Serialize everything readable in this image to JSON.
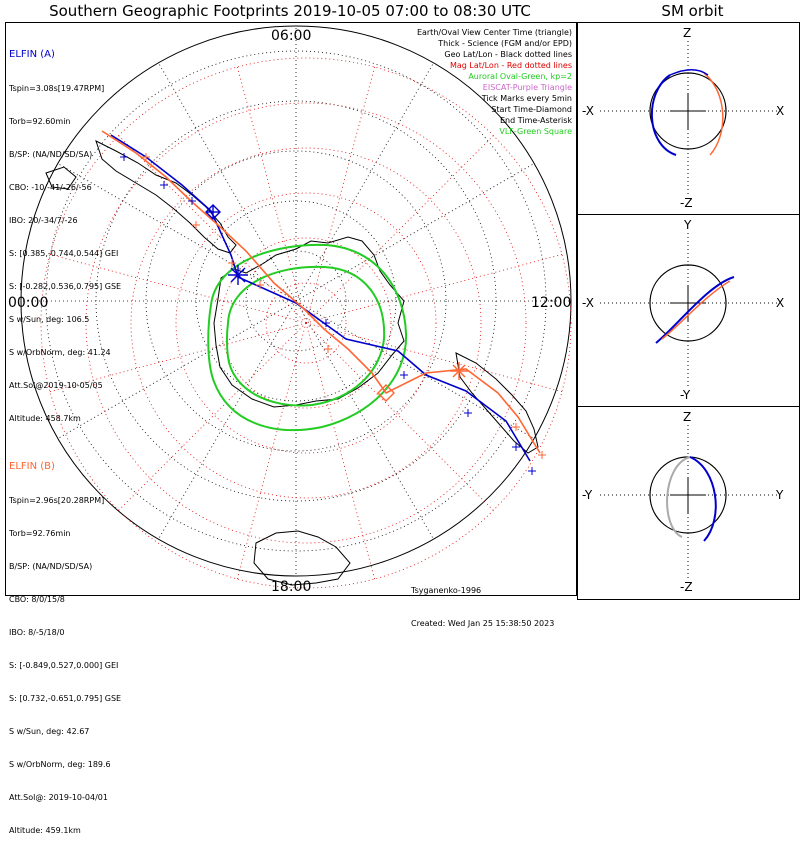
{
  "titles": {
    "main": "Southern Geographic Footprints 2019-10-05 07:00 to 08:30 UTC",
    "sm": "SM orbit"
  },
  "map": {
    "time_labels": {
      "top": "06:00",
      "left": "00:00",
      "right": "12:00",
      "bottom": "18:00"
    },
    "legend": [
      {
        "text": "Earth/Oval View Center Time (triangle)",
        "color": "#000000"
      },
      {
        "text": "Thick - Science (FGM and/or EPD)",
        "color": "#000000"
      },
      {
        "text": "Geo Lat/Lon - Black dotted lines",
        "color": "#000000"
      },
      {
        "text": "Mag Lat/Lon - Red dotted lines",
        "color": "#e00000"
      },
      {
        "text": "Auroral Oval-Green, kp=2",
        "color": "#22cc22"
      },
      {
        "text": "EISCAT-Purple Triangle",
        "color": "#cc66cc"
      },
      {
        "text": "Tick Marks every 5min",
        "color": "#000000"
      },
      {
        "text": "Start Time-Diamond",
        "color": "#000000"
      },
      {
        "text": "End Time-Asterisk",
        "color": "#000000"
      },
      {
        "text": "VLF-Green Square",
        "color": "#22cc22"
      }
    ],
    "credit_author": "Tsyganenko-1996",
    "credit_created": "Created: Wed Jan 25 15:38:50 2023"
  },
  "elfin_a": {
    "name": "ELFIN (A)",
    "color": "#0000cc",
    "lines": [
      "Tspin=3.08s[19.47RPM]",
      "Torb=92.60min",
      "B/SP: (NA/ND/SD/SA)",
      "CBO: -10/-41/-26/-56",
      "IBO: 20/-34/7/-26",
      "S: [0.385,-0.744,0.544] GEI",
      "S: [-0.282,0.536,0.795] GSE",
      "S w/Sun, deg: 106.5",
      "S w/OrbNorm, deg: 41.24",
      "Att.Sol@2019-10-05/05",
      "Altitude: 458.7km"
    ]
  },
  "elfin_b": {
    "name": "ELFIN (B)",
    "color": "#ff6633",
    "lines": [
      "Tspin=2.96s[20.28RPM]",
      "Torb=92.76min",
      "B/SP: (NA/ND/SD/SA)",
      "CBO: 8/0/15/8",
      "IBO: 8/-5/18/0",
      "S: [-0.849,0.527,0.000] GEI",
      "S: [0.732,-0.651,0.795] GSE",
      "S w/Sun, deg: 42.67",
      "S w/OrbNorm, deg: 189.6",
      "Att.Sol@: 2019-10-04/01",
      "Altitude: 459.1km"
    ]
  },
  "sm_panels": [
    {
      "top": "Z",
      "bottom": "-Z",
      "left": "-X",
      "right": "X"
    },
    {
      "top": "Y",
      "bottom": "-Y",
      "left": "-X",
      "right": "X"
    },
    {
      "top": "Z",
      "bottom": "-Z",
      "left": "-Y",
      "right": "Y"
    }
  ]
}
